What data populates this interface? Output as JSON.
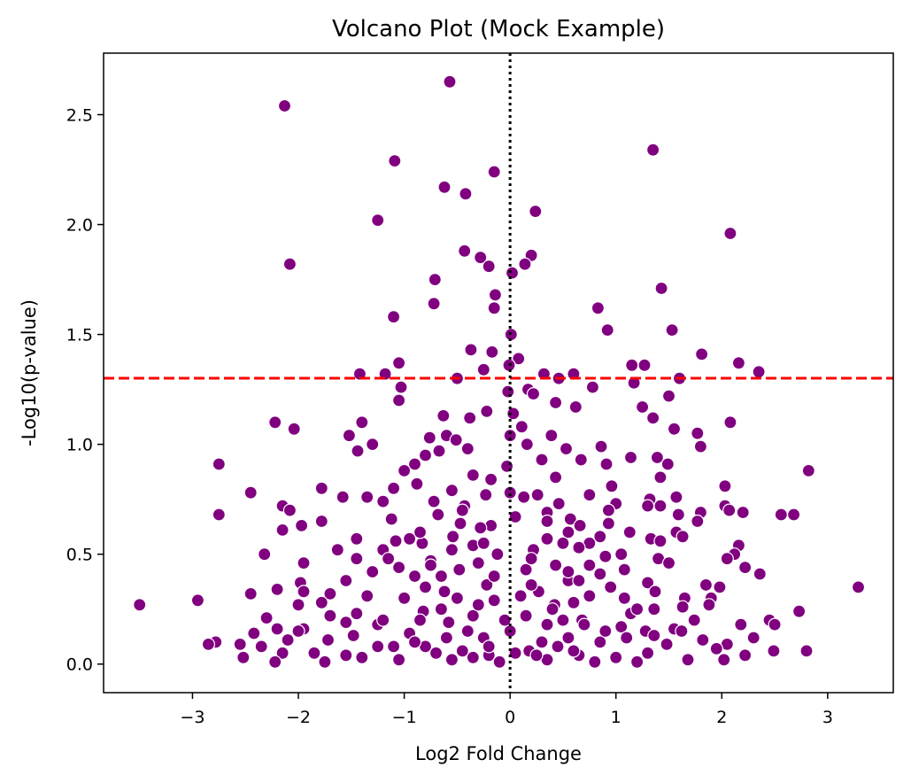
{
  "chart_data": {
    "type": "scatter",
    "title": "Volcano Plot (Mock Example)",
    "xlabel": "Log2 Fold Change",
    "ylabel": "-Log10(p-value)",
    "xlim": [
      -3.84,
      3.62
    ],
    "ylim": [
      -0.13,
      2.78
    ],
    "xticks": [
      -3,
      -2,
      -1,
      0,
      1,
      2,
      3
    ],
    "xtick_labels": [
      "−3",
      "−2",
      "−1",
      "0",
      "1",
      "2",
      "3"
    ],
    "yticks": [
      0.0,
      0.5,
      1.0,
      1.5,
      2.0,
      2.5
    ],
    "ytick_labels": [
      "0.0",
      "0.5",
      "1.0",
      "1.5",
      "2.0",
      "2.5"
    ],
    "grid": false,
    "colors": {
      "points": "#800080",
      "point_edge": "#ffffff",
      "threshold_line": "#ff0000",
      "zero_line": "#000000"
    },
    "reference_lines": [
      {
        "orientation": "horizontal",
        "value": 1.301,
        "style": "dashed",
        "color": "#ff0000"
      },
      {
        "orientation": "vertical",
        "value": 0,
        "style": "dotted",
        "color": "#000000"
      }
    ],
    "points": [
      [
        -0.57,
        2.65
      ],
      [
        -2.13,
        2.54
      ],
      [
        1.35,
        2.34
      ],
      [
        -1.09,
        2.29
      ],
      [
        -0.15,
        2.24
      ],
      [
        -0.62,
        2.17
      ],
      [
        -0.42,
        2.14
      ],
      [
        0.24,
        2.06
      ],
      [
        -1.25,
        2.02
      ],
      [
        2.08,
        1.96
      ],
      [
        -0.43,
        1.88
      ],
      [
        0.2,
        1.86
      ],
      [
        -0.28,
        1.85
      ],
      [
        -2.08,
        1.82
      ],
      [
        -0.2,
        1.81
      ],
      [
        0.14,
        1.82
      ],
      [
        0.02,
        1.78
      ],
      [
        -0.71,
        1.75
      ],
      [
        1.43,
        1.71
      ],
      [
        -0.14,
        1.68
      ],
      [
        -0.72,
        1.64
      ],
      [
        0.83,
        1.62
      ],
      [
        -0.15,
        1.62
      ],
      [
        -1.1,
        1.58
      ],
      [
        0.92,
        1.52
      ],
      [
        1.53,
        1.52
      ],
      [
        0.01,
        1.5
      ],
      [
        -0.37,
        1.43
      ],
      [
        -0.17,
        1.42
      ],
      [
        1.81,
        1.41
      ],
      [
        0.08,
        1.39
      ],
      [
        -1.05,
        1.37
      ],
      [
        2.16,
        1.37
      ],
      [
        -0.01,
        1.36
      ],
      [
        1.15,
        1.36
      ],
      [
        1.27,
        1.36
      ],
      [
        -0.25,
        1.34
      ],
      [
        2.35,
        1.33
      ],
      [
        -1.42,
        1.32
      ],
      [
        -1.18,
        1.32
      ],
      [
        0.32,
        1.32
      ],
      [
        0.6,
        1.32
      ],
      [
        -0.5,
        1.3
      ],
      [
        0.46,
        1.3
      ],
      [
        1.6,
        1.3
      ],
      [
        1.17,
        1.28
      ],
      [
        -1.03,
        1.26
      ],
      [
        0.78,
        1.26
      ],
      [
        -0.02,
        1.24
      ],
      [
        0.17,
        1.25
      ],
      [
        0.22,
        1.23
      ],
      [
        1.5,
        1.22
      ],
      [
        -1.05,
        1.2
      ],
      [
        0.43,
        1.19
      ],
      [
        1.25,
        1.17
      ],
      [
        0.62,
        1.17
      ],
      [
        -0.22,
        1.15
      ],
      [
        0.03,
        1.14
      ],
      [
        -0.38,
        1.12
      ],
      [
        -0.63,
        1.13
      ],
      [
        1.35,
        1.12
      ],
      [
        -2.22,
        1.1
      ],
      [
        -1.4,
        1.1
      ],
      [
        2.08,
        1.1
      ],
      [
        0.11,
        1.08
      ],
      [
        -2.04,
        1.07
      ],
      [
        1.55,
        1.07
      ],
      [
        -0.6,
        1.04
      ],
      [
        -1.52,
        1.04
      ],
      [
        0.0,
        1.04
      ],
      [
        0.39,
        1.04
      ],
      [
        1.77,
        1.05
      ],
      [
        -0.76,
        1.03
      ],
      [
        -0.51,
        1.02
      ],
      [
        -1.3,
        1.0
      ],
      [
        0.16,
        1.0
      ],
      [
        -0.4,
        0.98
      ],
      [
        -1.44,
        0.97
      ],
      [
        0.86,
        0.99
      ],
      [
        1.8,
        0.99
      ],
      [
        -0.67,
        0.97
      ],
      [
        0.53,
        0.98
      ],
      [
        -0.8,
        0.95
      ],
      [
        0.3,
        0.93
      ],
      [
        1.14,
        0.94
      ],
      [
        1.39,
        0.94
      ],
      [
        -0.9,
        0.91
      ],
      [
        -2.75,
        0.91
      ],
      [
        0.67,
        0.93
      ],
      [
        0.91,
        0.91
      ],
      [
        -0.03,
        0.9
      ],
      [
        -1.0,
        0.88
      ],
      [
        1.49,
        0.91
      ],
      [
        2.82,
        0.88
      ],
      [
        -0.35,
        0.86
      ],
      [
        -0.18,
        0.84
      ],
      [
        0.43,
        0.85
      ],
      [
        -0.88,
        0.82
      ],
      [
        0.96,
        0.81
      ],
      [
        -1.1,
        0.8
      ],
      [
        2.03,
        0.81
      ],
      [
        -1.78,
        0.8
      ],
      [
        -0.55,
        0.79
      ],
      [
        0.0,
        0.78
      ],
      [
        1.42,
        0.85
      ],
      [
        -2.45,
        0.78
      ],
      [
        -0.23,
        0.77
      ],
      [
        -1.58,
        0.76
      ],
      [
        -1.35,
        0.76
      ],
      [
        0.13,
        0.76
      ],
      [
        0.26,
        0.77
      ],
      [
        0.75,
        0.77
      ],
      [
        1.32,
        0.75
      ],
      [
        1.57,
        0.76
      ],
      [
        -0.72,
        0.74
      ],
      [
        -1.2,
        0.74
      ],
      [
        0.46,
        0.73
      ],
      [
        1.0,
        0.73
      ],
      [
        1.42,
        0.72
      ],
      [
        2.03,
        0.72
      ],
      [
        -2.15,
        0.72
      ],
      [
        -0.43,
        0.72
      ],
      [
        0.93,
        0.7
      ],
      [
        1.3,
        0.72
      ],
      [
        -2.08,
        0.7
      ],
      [
        0.35,
        0.69
      ],
      [
        -0.68,
        0.68
      ],
      [
        2.07,
        0.7
      ],
      [
        -2.75,
        0.68
      ],
      [
        1.59,
        0.68
      ],
      [
        2.2,
        0.69
      ],
      [
        1.8,
        0.69
      ],
      [
        2.56,
        0.68
      ],
      [
        2.68,
        0.68
      ],
      [
        -1.12,
        0.66
      ],
      [
        0.57,
        0.66
      ],
      [
        -1.78,
        0.65
      ],
      [
        1.77,
        0.65
      ],
      [
        -0.47,
        0.64
      ],
      [
        -0.18,
        0.63
      ],
      [
        0.66,
        0.63
      ],
      [
        0.93,
        0.64
      ],
      [
        -1.97,
        0.63
      ],
      [
        -2.15,
        0.61
      ],
      [
        -0.28,
        0.62
      ],
      [
        0.55,
        0.6
      ],
      [
        1.13,
        0.6
      ],
      [
        1.57,
        0.6
      ],
      [
        -0.54,
        0.58
      ],
      [
        -1.08,
        0.56
      ],
      [
        -0.95,
        0.57
      ],
      [
        0.35,
        0.57
      ],
      [
        -1.45,
        0.57
      ],
      [
        1.33,
        0.57
      ],
      [
        1.42,
        0.56
      ],
      [
        1.63,
        0.58
      ],
      [
        -0.83,
        0.55
      ],
      [
        0.75,
        0.55
      ],
      [
        2.16,
        0.54
      ],
      [
        -1.63,
        0.52
      ],
      [
        -0.35,
        0.54
      ],
      [
        0.22,
        0.52
      ],
      [
        -1.2,
        0.52
      ],
      [
        2.12,
        0.5
      ],
      [
        0.65,
        0.53
      ],
      [
        -2.32,
        0.5
      ],
      [
        -1.45,
        0.48
      ],
      [
        -0.12,
        0.5
      ],
      [
        0.9,
        0.49
      ],
      [
        2.05,
        0.48
      ],
      [
        -0.75,
        0.47
      ],
      [
        1.4,
        0.48
      ],
      [
        -1.95,
        0.46
      ],
      [
        0.43,
        0.45
      ],
      [
        1.5,
        0.46
      ],
      [
        2.22,
        0.44
      ],
      [
        -1.05,
        0.44
      ],
      [
        1.08,
        0.43
      ],
      [
        -0.48,
        0.43
      ],
      [
        -1.3,
        0.42
      ],
      [
        0.15,
        0.43
      ],
      [
        0.85,
        0.41
      ],
      [
        2.36,
        0.41
      ],
      [
        -0.9,
        0.4
      ],
      [
        -1.55,
        0.38
      ],
      [
        -1.98,
        0.37
      ],
      [
        0.55,
        0.38
      ],
      [
        1.3,
        0.37
      ],
      [
        -0.22,
        0.36
      ],
      [
        1.85,
        0.36
      ],
      [
        -2.2,
        0.34
      ],
      [
        1.98,
        0.35
      ],
      [
        3.29,
        0.35
      ],
      [
        -2.45,
        0.32
      ],
      [
        -0.62,
        0.33
      ],
      [
        0.27,
        0.33
      ],
      [
        1.37,
        0.33
      ],
      [
        -1.7,
        0.32
      ],
      [
        -1.95,
        0.33
      ],
      [
        -1.35,
        0.31
      ],
      [
        0.75,
        0.31
      ],
      [
        1.08,
        0.3
      ],
      [
        -2.95,
        0.29
      ],
      [
        1.65,
        0.3
      ],
      [
        1.9,
        0.3
      ],
      [
        -0.15,
        0.29
      ],
      [
        -1.78,
        0.28
      ],
      [
        0.42,
        0.27
      ],
      [
        1.88,
        0.27
      ],
      [
        -2.0,
        0.27
      ],
      [
        1.63,
        0.26
      ],
      [
        -3.5,
        0.27
      ],
      [
        1.36,
        0.25
      ],
      [
        -0.82,
        0.24
      ],
      [
        -1.45,
        0.23
      ],
      [
        2.73,
        0.24
      ],
      [
        1.14,
        0.23
      ],
      [
        -1.7,
        0.22
      ],
      [
        -2.3,
        0.21
      ],
      [
        -0.35,
        0.22
      ],
      [
        0.68,
        0.2
      ],
      [
        1.74,
        0.2
      ],
      [
        2.45,
        0.2
      ],
      [
        -1.55,
        0.19
      ],
      [
        -1.25,
        0.18
      ],
      [
        -0.58,
        0.19
      ],
      [
        0.35,
        0.18
      ],
      [
        1.05,
        0.17
      ],
      [
        2.18,
        0.18
      ],
      [
        -1.95,
        0.16
      ],
      [
        -2.2,
        0.16
      ],
      [
        2.5,
        0.18
      ],
      [
        1.55,
        0.16
      ],
      [
        -2.0,
        0.15
      ],
      [
        1.28,
        0.15
      ],
      [
        0.0,
        0.15
      ],
      [
        1.62,
        0.15
      ],
      [
        -0.95,
        0.14
      ],
      [
        -2.42,
        0.14
      ],
      [
        -1.48,
        0.13
      ],
      [
        1.36,
        0.13
      ],
      [
        2.3,
        0.12
      ],
      [
        -0.25,
        0.12
      ],
      [
        0.55,
        0.12
      ],
      [
        -1.72,
        0.11
      ],
      [
        -2.1,
        0.11
      ],
      [
        1.82,
        0.11
      ],
      [
        0.85,
        0.1
      ],
      [
        -2.78,
        0.1
      ],
      [
        -2.85,
        0.09
      ],
      [
        2.05,
        0.09
      ],
      [
        -2.55,
        0.09
      ],
      [
        1.48,
        0.09
      ],
      [
        -1.25,
        0.08
      ],
      [
        -0.8,
        0.08
      ],
      [
        -2.35,
        0.08
      ],
      [
        1.95,
        0.07
      ],
      [
        2.49,
        0.06
      ],
      [
        -0.45,
        0.06
      ],
      [
        0.18,
        0.06
      ],
      [
        2.8,
        0.06
      ],
      [
        -1.85,
        0.05
      ],
      [
        1.3,
        0.05
      ],
      [
        -2.15,
        0.05
      ],
      [
        -1.55,
        0.04
      ],
      [
        -0.2,
        0.04
      ],
      [
        2.22,
        0.04
      ],
      [
        0.65,
        0.04
      ],
      [
        -1.4,
        0.03
      ],
      [
        1.0,
        0.03
      ],
      [
        -2.52,
        0.03
      ],
      [
        -1.05,
        0.02
      ],
      [
        1.68,
        0.02
      ],
      [
        -0.55,
        0.02
      ],
      [
        0.35,
        0.02
      ],
      [
        2.02,
        0.02
      ],
      [
        -2.22,
        0.01
      ],
      [
        1.2,
        0.01
      ],
      [
        -1.75,
        0.01
      ],
      [
        -0.1,
        0.01
      ],
      [
        0.8,
        0.01
      ],
      [
        -0.8,
        0.35
      ],
      [
        -0.5,
        0.3
      ],
      [
        -0.3,
        0.27
      ],
      [
        0.1,
        0.31
      ],
      [
        0.4,
        0.25
      ],
      [
        0.6,
        0.28
      ],
      [
        -0.65,
        0.25
      ],
      [
        -0.85,
        0.2
      ],
      [
        0.15,
        0.22
      ],
      [
        0.5,
        0.2
      ],
      [
        0.7,
        0.18
      ],
      [
        0.9,
        0.15
      ],
      [
        -0.4,
        0.15
      ],
      [
        -0.6,
        0.12
      ],
      [
        -0.9,
        0.1
      ],
      [
        0.3,
        0.1
      ],
      [
        0.45,
        0.08
      ],
      [
        -0.2,
        0.08
      ],
      [
        0.6,
        0.06
      ],
      [
        -0.7,
        0.05
      ],
      [
        0.25,
        0.04
      ],
      [
        -0.35,
        0.03
      ],
      [
        0.05,
        0.05
      ],
      [
        -0.05,
        0.2
      ],
      [
        0.75,
        0.45
      ],
      [
        -0.65,
        0.4
      ],
      [
        0.2,
        0.48
      ],
      [
        -0.25,
        0.55
      ],
      [
        0.5,
        0.55
      ],
      [
        -0.85,
        0.6
      ],
      [
        0.35,
        0.65
      ],
      [
        -0.45,
        0.7
      ],
      [
        0.05,
        0.67
      ],
      [
        0.85,
        0.58
      ],
      [
        -0.55,
        0.52
      ],
      [
        1.05,
        0.5
      ],
      [
        -1.15,
        0.48
      ],
      [
        0.95,
        0.35
      ],
      [
        -1.0,
        0.3
      ],
      [
        1.2,
        0.25
      ],
      [
        -1.2,
        0.2
      ],
      [
        1.1,
        0.12
      ],
      [
        -1.1,
        0.08
      ],
      [
        0.65,
        0.38
      ],
      [
        -0.15,
        0.4
      ],
      [
        0.2,
        0.36
      ],
      [
        -0.75,
        0.45
      ],
      [
        0.55,
        0.42
      ],
      [
        -0.3,
        0.46
      ]
    ]
  }
}
